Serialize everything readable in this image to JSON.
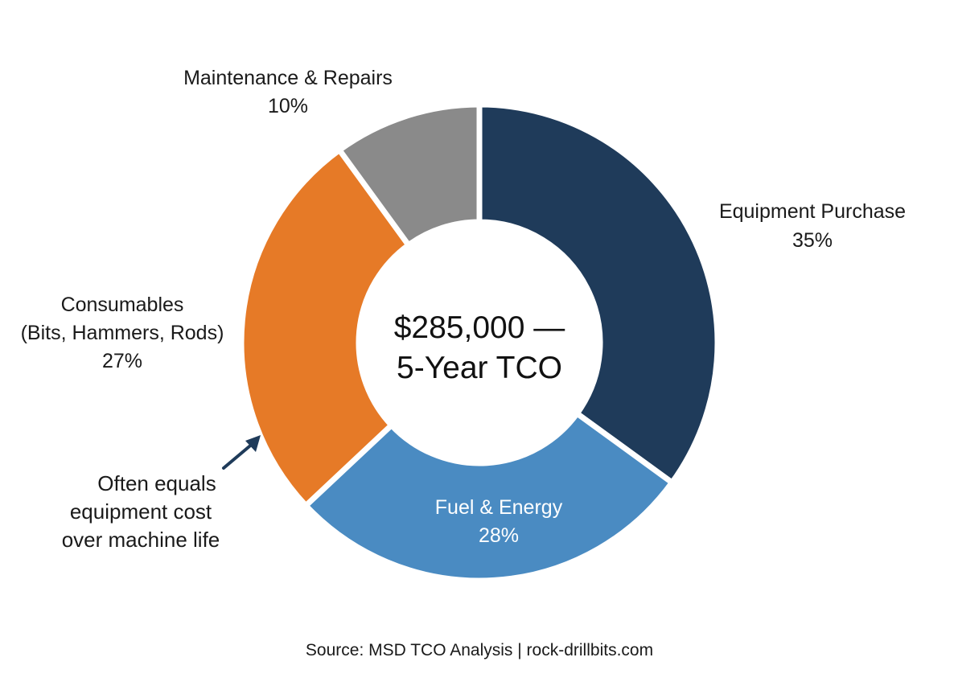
{
  "chart_data": {
    "type": "pie",
    "variant": "donut",
    "center_label": [
      "$285,000 —",
      "5-Year TCO"
    ],
    "slices": [
      {
        "label_lines": [
          "Equipment Purchase"
        ],
        "value": 35,
        "value_label": "35%",
        "color": "#1f3b5a"
      },
      {
        "label_lines": [
          "Fuel & Energy"
        ],
        "value": 28,
        "value_label": "28%",
        "color": "#4a8bc2"
      },
      {
        "label_lines": [
          "Consumables",
          "(Bits, Hammers, Rods)"
        ],
        "value": 27,
        "value_label": "27%",
        "color": "#e67a27"
      },
      {
        "label_lines": [
          "Maintenance & Repairs"
        ],
        "value": 10,
        "value_label": "10%",
        "color": "#8a8a8a"
      }
    ],
    "annotation": {
      "target": "Consumables",
      "lines": [
        "Often equals",
        "equipment cost",
        "over machine life"
      ],
      "arrow_color": "#1f3b5a"
    },
    "source": "Source: MSD TCO Analysis | rock-drillbits.com"
  }
}
